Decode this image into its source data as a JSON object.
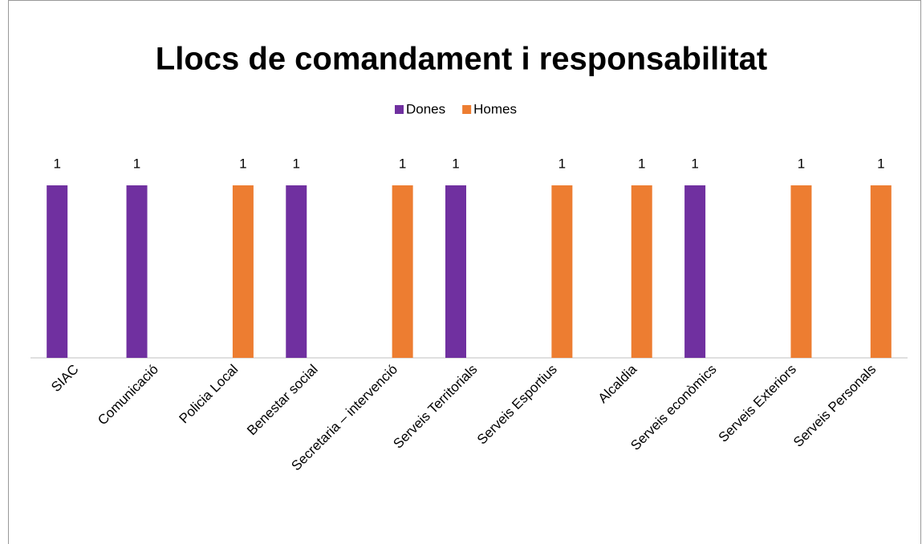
{
  "chart_data": {
    "type": "bar",
    "title": "Llocs de comandament i responsabilitat",
    "categories": [
      "SIAC",
      "Comunicació",
      "Policia Local",
      "Benestar social",
      "Secretaria – intervenció",
      "Serveis Territorials",
      "Serveis Esportius",
      "Alcaldia",
      "Serveis econòmics",
      "Serveis Exteriors",
      "Serveis Personals"
    ],
    "series": [
      {
        "name": "Dones",
        "color": "#7030a0",
        "values": [
          1,
          1,
          null,
          1,
          null,
          1,
          null,
          null,
          1,
          null,
          null
        ]
      },
      {
        "name": "Homes",
        "color": "#ed7d31",
        "values": [
          null,
          null,
          1,
          null,
          1,
          null,
          1,
          1,
          null,
          1,
          1
        ]
      }
    ],
    "ylim": [
      0,
      1.2
    ],
    "legend": "top"
  }
}
